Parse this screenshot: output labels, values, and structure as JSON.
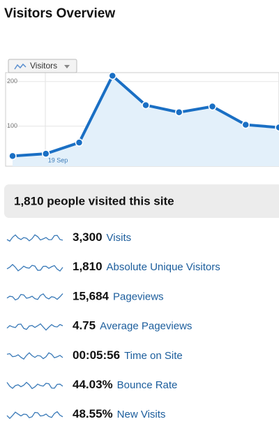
{
  "header": {
    "title": "Visitors Overview"
  },
  "chart_data": {
    "type": "line",
    "selector": "Visitors",
    "categories": [
      null,
      "19 Sep",
      null,
      null,
      null,
      null,
      null,
      null,
      null
    ],
    "values": [
      33,
      38,
      63,
      213,
      147,
      131,
      144,
      103,
      97
    ],
    "color": "#1a6fc4",
    "area_color": "#e3f0fa",
    "ylim": [
      10,
      220
    ],
    "yticks": [
      100,
      200
    ],
    "grid": true
  },
  "summary": {
    "text": "1,810 people visited this site"
  },
  "metrics": [
    {
      "value": "3,300",
      "label": "Visits"
    },
    {
      "value": "1,810",
      "label": "Absolute Unique Visitors"
    },
    {
      "value": "15,684",
      "label": "Pageviews"
    },
    {
      "value": "4.75",
      "label": "Average Pageviews"
    },
    {
      "value": "00:05:56",
      "label": "Time on Site"
    },
    {
      "value": "44.03%",
      "label": "Bounce Rate"
    },
    {
      "value": "48.55%",
      "label": "New Visits"
    }
  ]
}
